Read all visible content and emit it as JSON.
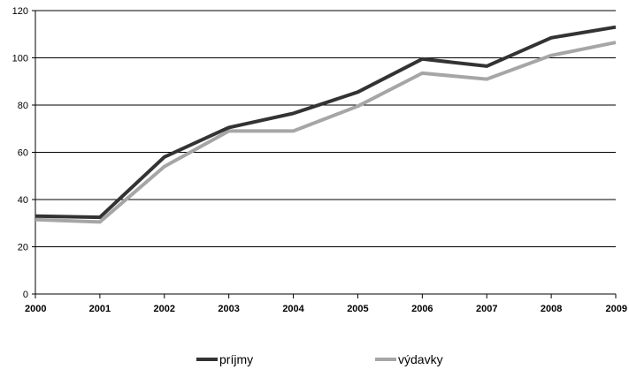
{
  "chart_data": {
    "type": "line",
    "title": "",
    "xlabel": "",
    "ylabel": "",
    "x": [
      "2000",
      "2001",
      "2002",
      "2003",
      "2004",
      "2005",
      "2006",
      "2007",
      "2008",
      "2009"
    ],
    "ylim": [
      0,
      120
    ],
    "yticks": [
      0,
      20,
      40,
      60,
      80,
      100,
      120
    ],
    "grid": true,
    "legend_position": "bottom",
    "series": [
      {
        "name": "príjmy",
        "color": "#333333",
        "values": [
          33,
          32.5,
          58,
          70.5,
          76.5,
          85.5,
          99.5,
          96.5,
          108.5,
          113
        ]
      },
      {
        "name": "výdavky",
        "color": "#a6a6a6",
        "values": [
          31.5,
          30.5,
          54,
          69,
          69,
          79.5,
          93.5,
          91,
          101,
          106.5
        ]
      }
    ]
  }
}
